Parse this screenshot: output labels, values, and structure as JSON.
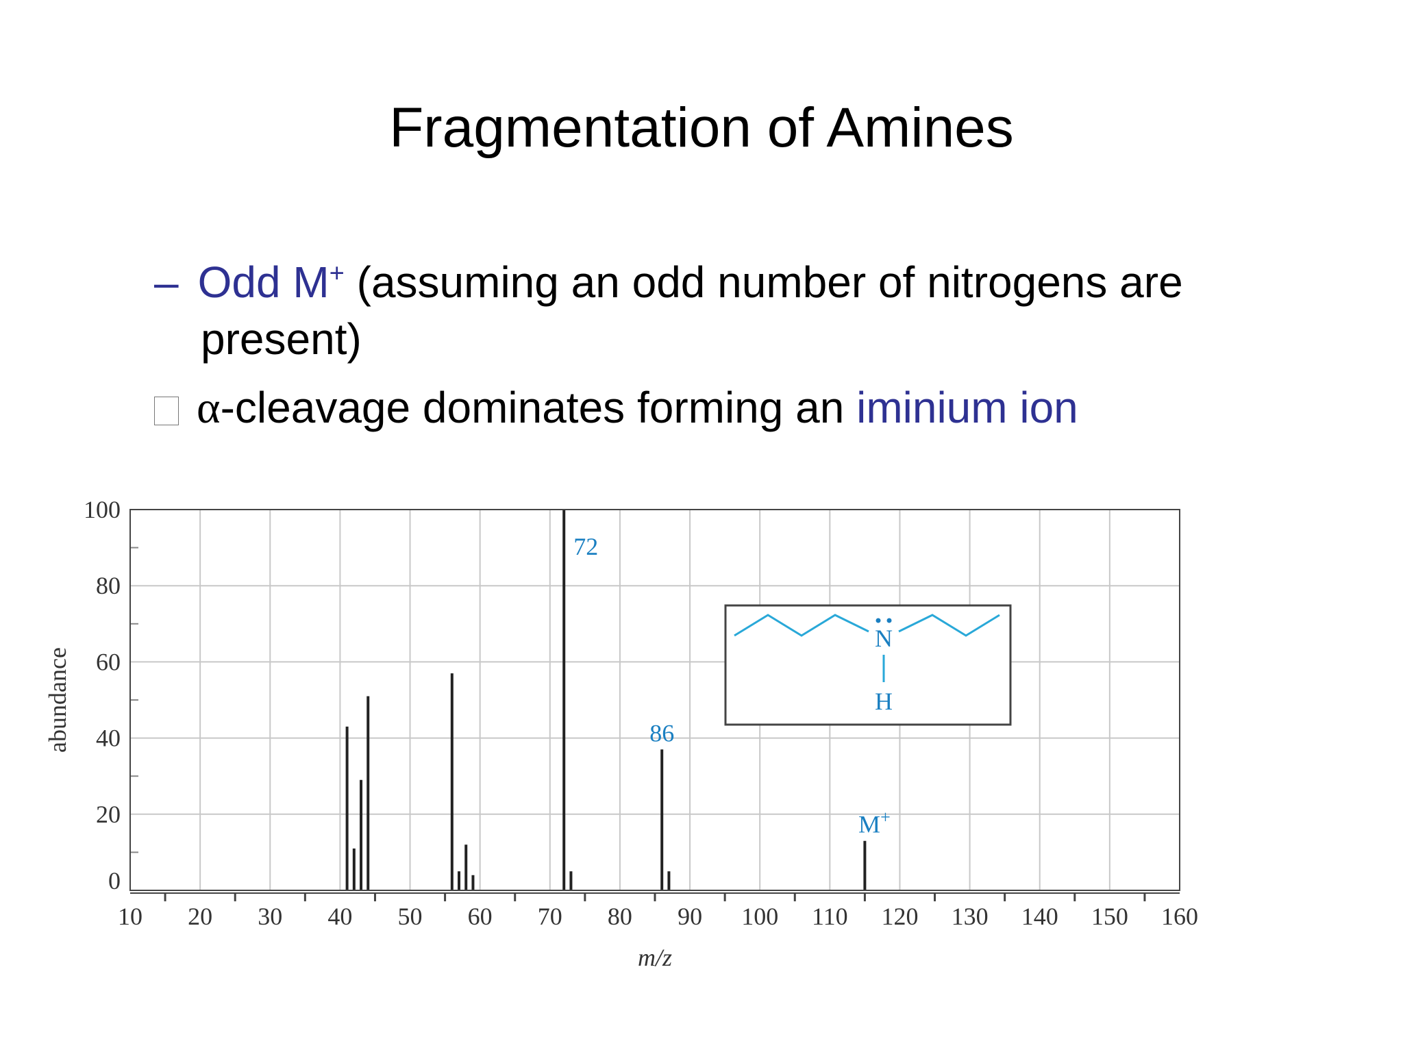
{
  "slide": {
    "title": "Fragmentation of Amines",
    "bullet1": {
      "dash": "–",
      "highlight": "Odd M",
      "sup": "+",
      "rest": " (assuming an odd number of nitrogens are",
      "continuation": "present)"
    },
    "bullet2": {
      "alpha": "α",
      "text": "-cleavage dominates forming an ",
      "highlight": "iminium ion"
    }
  },
  "chart_data": {
    "type": "bar",
    "xlabel": "m/z",
    "ylabel": "abundance",
    "xlim": [
      10,
      160
    ],
    "ylim": [
      0,
      100
    ],
    "x_ticks": [
      10,
      20,
      30,
      40,
      50,
      60,
      70,
      80,
      90,
      100,
      110,
      120,
      130,
      140,
      150,
      160
    ],
    "y_ticks": [
      0,
      20,
      40,
      60,
      80,
      100
    ],
    "grid": true,
    "peaks": [
      {
        "mz": 41,
        "abundance": 43
      },
      {
        "mz": 42,
        "abundance": 11
      },
      {
        "mz": 43,
        "abundance": 29
      },
      {
        "mz": 44,
        "abundance": 51
      },
      {
        "mz": 56,
        "abundance": 57
      },
      {
        "mz": 57,
        "abundance": 5
      },
      {
        "mz": 58,
        "abundance": 12
      },
      {
        "mz": 59,
        "abundance": 4
      },
      {
        "mz": 72,
        "abundance": 100
      },
      {
        "mz": 73,
        "abundance": 5
      },
      {
        "mz": 86,
        "abundance": 37
      },
      {
        "mz": 87,
        "abundance": 5
      },
      {
        "mz": 115,
        "abundance": 13
      }
    ],
    "annotations": [
      {
        "mz": 72,
        "text": "72"
      },
      {
        "mz": 86,
        "text": "86"
      },
      {
        "mz": 115,
        "text": "M",
        "sup": "+"
      }
    ],
    "structure": {
      "atoms": [
        "N",
        "H"
      ]
    },
    "colors": {
      "label": "#1a7fc1",
      "bar": "#222222",
      "grid": "#c8c8c8",
      "highlight": "#2e3192"
    }
  }
}
